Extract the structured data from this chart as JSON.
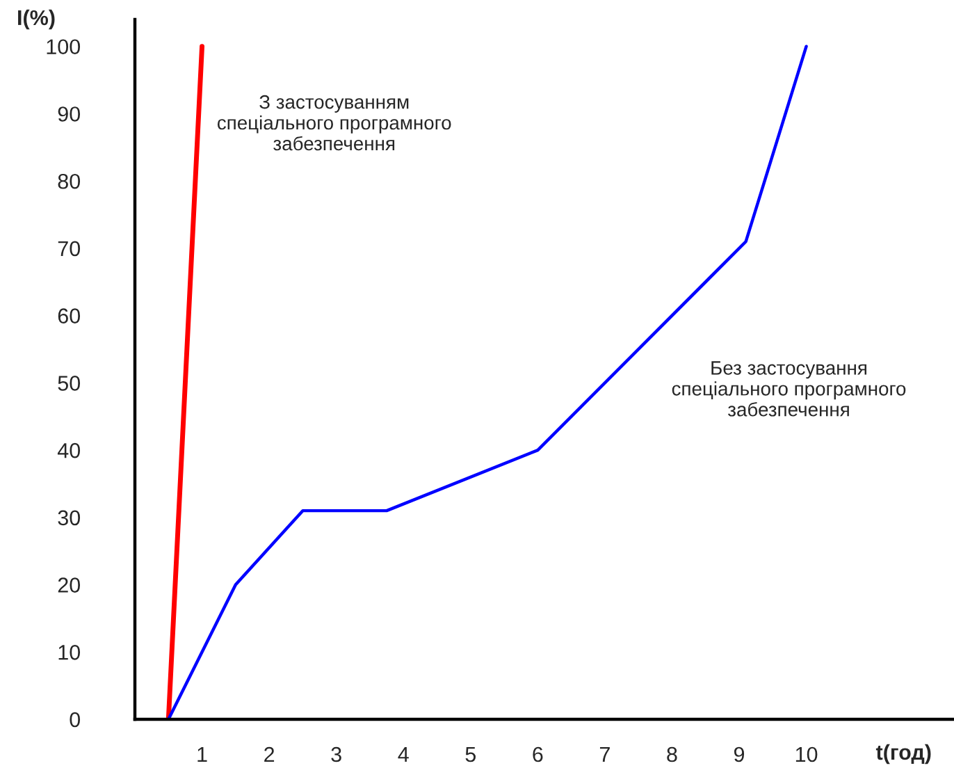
{
  "chart_data": {
    "type": "line",
    "xlabel": "t(год)",
    "ylabel": "I(%)",
    "xlim": [
      0,
      12.2
    ],
    "xticks": [
      1,
      2,
      3,
      4,
      5,
      6,
      7,
      8,
      9,
      10
    ],
    "ylim": [
      0,
      104
    ],
    "yticks": [
      0,
      10,
      20,
      30,
      40,
      50,
      60,
      70,
      80,
      90,
      100
    ],
    "grid": false,
    "legend": false,
    "marker": "none",
    "line_style": "solid",
    "series": [
      {
        "name": "З застосуванням\nспеціального програмного\nзабезпечення",
        "color": "#ff0000",
        "x": [
          0.5,
          1
        ],
        "values": [
          0,
          100
        ]
      },
      {
        "name": "Без застосування\nспеціального програмного\nзабезпечення",
        "color": "#0000ff",
        "x": [
          0.5,
          1.5,
          2.5,
          3.75,
          6,
          9.1,
          10
        ],
        "values": [
          0,
          20,
          31,
          31,
          40,
          71,
          100
        ]
      }
    ]
  }
}
